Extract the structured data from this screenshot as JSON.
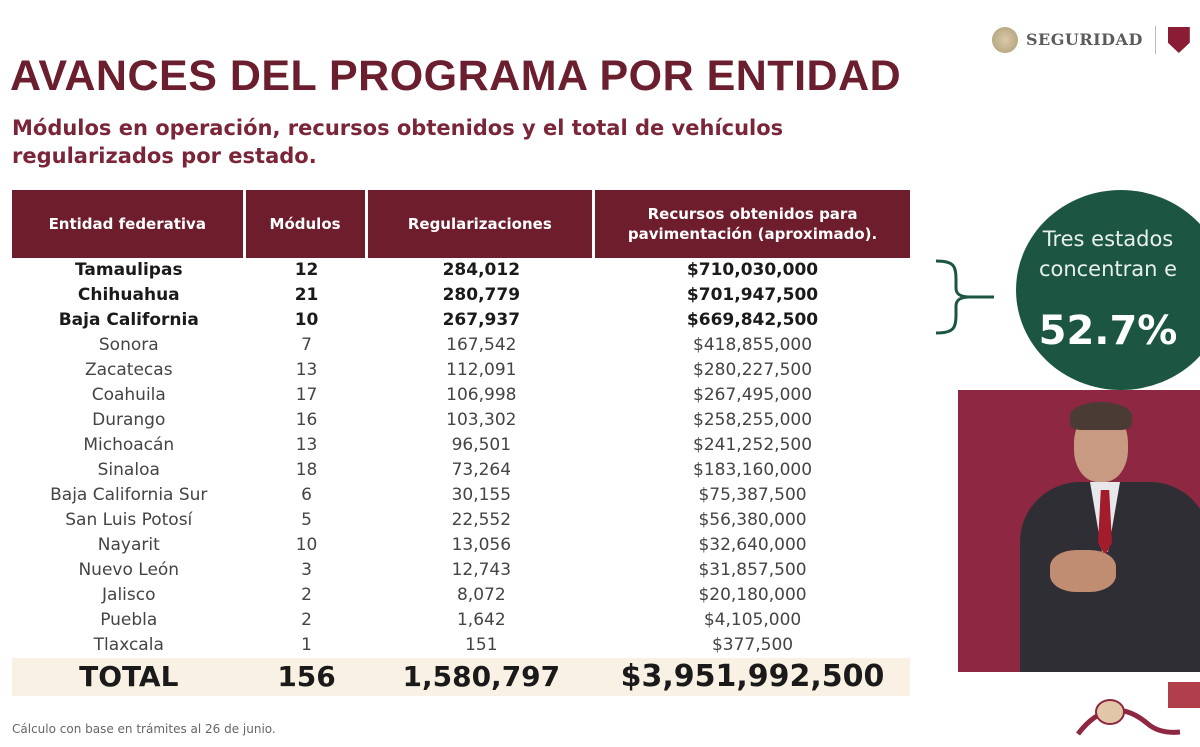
{
  "header": {
    "logo_text": "SEGURIDAD",
    "title": "AVANCES DEL PROGRAMA POR ENTIDAD",
    "subtitle": "Módulos en operación, recursos obtenidos y el total de vehículos regularizados por estado."
  },
  "table": {
    "columns": [
      "Entidad federativa",
      "Módulos",
      "Regularizaciones",
      "Recursos obtenidos para pavimentación (aproximado)."
    ],
    "rows": [
      {
        "entidad": "Tamaulipas",
        "modulos": "12",
        "regularizaciones": "284,012",
        "recursos": "$710,030,000"
      },
      {
        "entidad": "Chihuahua",
        "modulos": "21",
        "regularizaciones": "280,779",
        "recursos": "$701,947,500"
      },
      {
        "entidad": "Baja California",
        "modulos": "10",
        "regularizaciones": "267,937",
        "recursos": "$669,842,500"
      },
      {
        "entidad": "Sonora",
        "modulos": "7",
        "regularizaciones": "167,542",
        "recursos": "$418,855,000"
      },
      {
        "entidad": "Zacatecas",
        "modulos": "13",
        "regularizaciones": "112,091",
        "recursos": "$280,227,500"
      },
      {
        "entidad": "Coahuila",
        "modulos": "17",
        "regularizaciones": "106,998",
        "recursos": "$267,495,000"
      },
      {
        "entidad": "Durango",
        "modulos": "16",
        "regularizaciones": "103,302",
        "recursos": "$258,255,000"
      },
      {
        "entidad": "Michoacán",
        "modulos": "13",
        "regularizaciones": "96,501",
        "recursos": "$241,252,500"
      },
      {
        "entidad": "Sinaloa",
        "modulos": "18",
        "regularizaciones": "73,264",
        "recursos": "$183,160,000"
      },
      {
        "entidad": "Baja California Sur",
        "modulos": "6",
        "regularizaciones": "30,155",
        "recursos": "$75,387,500"
      },
      {
        "entidad": "San Luis Potosí",
        "modulos": "5",
        "regularizaciones": "22,552",
        "recursos": "$56,380,000"
      },
      {
        "entidad": "Nayarit",
        "modulos": "10",
        "regularizaciones": "13,056",
        "recursos": "$32,640,000"
      },
      {
        "entidad": "Nuevo León",
        "modulos": "3",
        "regularizaciones": "12,743",
        "recursos": "$31,857,500"
      },
      {
        "entidad": "Jalisco",
        "modulos": "2",
        "regularizaciones": "8,072",
        "recursos": "$20,180,000"
      },
      {
        "entidad": "Puebla",
        "modulos": "2",
        "regularizaciones": "1,642",
        "recursos": "$4,105,000"
      },
      {
        "entidad": "Tlaxcala",
        "modulos": "1",
        "regularizaciones": "151",
        "recursos": "$377,500"
      }
    ],
    "total": {
      "label": "TOTAL",
      "modulos": "156",
      "regularizaciones": "1,580,797",
      "recursos": "$3,951,992,500"
    }
  },
  "callout": {
    "text": "Tres estados concentran e",
    "percent": "52.7%",
    "color": "#1c5642"
  },
  "footnote": "Cálculo con base en trámites al 26 de junio.",
  "colors": {
    "header_bg": "#6e1d2c",
    "title": "#6b1e2e",
    "total_bg": "#f8f1e4"
  }
}
